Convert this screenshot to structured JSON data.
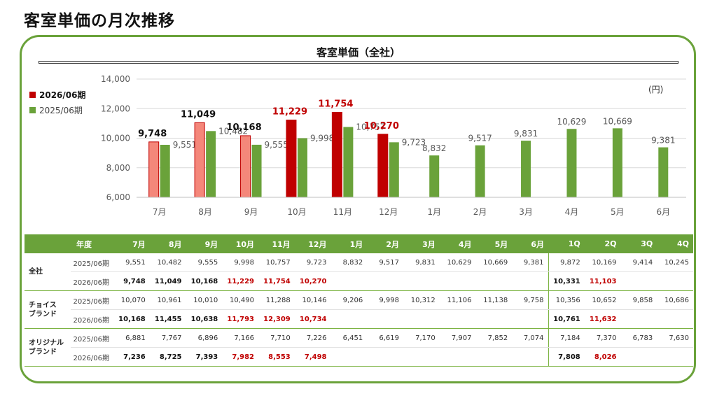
{
  "page_title": "客室単価の月次推移",
  "chart_data": {
    "type": "bar",
    "title": "客室単価（全社）",
    "unit": "(円)",
    "categories": [
      "7月",
      "8月",
      "9月",
      "10月",
      "11月",
      "12月",
      "1月",
      "2月",
      "3月",
      "4月",
      "5月",
      "6月"
    ],
    "ylim": [
      6000,
      14000
    ],
    "yticks": [
      "6,000",
      "8,000",
      "10,000",
      "12,000",
      "14,000"
    ],
    "series": [
      {
        "name": "2026/06期",
        "values": [
          9748,
          11049,
          10168,
          11229,
          11754,
          10270,
          null,
          null,
          null,
          null,
          null,
          null
        ],
        "labels": [
          "9,748",
          "11,049",
          "10,168",
          "11,229",
          "11,754",
          "10,270"
        ],
        "colors": [
          "#f4877a",
          "#f4877a",
          "#f4877a",
          "#c00000",
          "#c00000",
          "#c00000"
        ],
        "label_colors": [
          "#111111",
          "#111111",
          "#111111",
          "#c00000",
          "#c00000",
          "#c00000"
        ],
        "legend_color": "#c00000"
      },
      {
        "name": "2025/06期",
        "values": [
          9551,
          10482,
          9555,
          9998,
          10757,
          9723,
          8832,
          9517,
          9831,
          10629,
          10669,
          9381
        ],
        "labels": [
          "9,551",
          "10,482",
          "9,555",
          "9,998",
          "10,757",
          "9,723",
          "8,832",
          "9,517",
          "9,831",
          "10,629",
          "10,669",
          "9,381"
        ],
        "color": "#6aa23a"
      }
    ],
    "grid": true,
    "legend_position": "top-left"
  },
  "table": {
    "header": {
      "year_label": "年度",
      "columns": [
        "7月",
        "8月",
        "9月",
        "10月",
        "11月",
        "12月",
        "1月",
        "2月",
        "3月",
        "4月",
        "5月",
        "6月",
        "1Q",
        "2Q",
        "3Q",
        "4Q"
      ]
    },
    "groups": [
      {
        "name": "全社",
        "rows": [
          {
            "period": "2025/06期",
            "values": [
              "9,551",
              "10,482",
              "9,555",
              "9,998",
              "10,757",
              "9,723",
              "8,832",
              "9,517",
              "9,831",
              "10,629",
              "10,669",
              "9,381",
              "9,872",
              "10,169",
              "9,414",
              "10,245"
            ]
          },
          {
            "period": "2026/06期",
            "values": [
              "9,748",
              "11,049",
              "10,168",
              "11,229",
              "11,754",
              "10,270",
              "",
              "",
              "",
              "",
              "",
              "",
              "10,331",
              "11,103",
              "",
              ""
            ]
          }
        ]
      },
      {
        "name": "チョイス\nブランド",
        "rows": [
          {
            "period": "2025/06期",
            "values": [
              "10,070",
              "10,961",
              "10,010",
              "10,490",
              "11,288",
              "10,146",
              "9,206",
              "9,998",
              "10,312",
              "11,106",
              "11,138",
              "9,758",
              "10,356",
              "10,652",
              "9,858",
              "10,686"
            ]
          },
          {
            "period": "2026/06期",
            "values": [
              "10,168",
              "11,455",
              "10,638",
              "11,793",
              "12,309",
              "10,734",
              "",
              "",
              "",
              "",
              "",
              "",
              "10,761",
              "11,632",
              "",
              ""
            ]
          }
        ]
      },
      {
        "name": "オリジナル\nブランド",
        "rows": [
          {
            "period": "2025/06期",
            "values": [
              "6,881",
              "7,767",
              "6,896",
              "7,166",
              "7,710",
              "7,226",
              "6,451",
              "6,619",
              "7,170",
              "7,907",
              "7,852",
              "7,074",
              "7,184",
              "7,370",
              "6,783",
              "7,630"
            ]
          },
          {
            "period": "2026/06期",
            "values": [
              "7,236",
              "8,725",
              "7,393",
              "7,982",
              "8,553",
              "7,498",
              "",
              "",
              "",
              "",
              "",
              "",
              "7,808",
              "8,026",
              "",
              ""
            ]
          }
        ]
      }
    ]
  }
}
